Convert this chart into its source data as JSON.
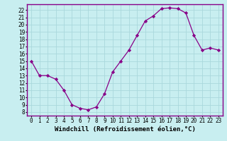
{
  "x": [
    0,
    1,
    2,
    3,
    4,
    5,
    6,
    7,
    8,
    9,
    10,
    11,
    12,
    13,
    14,
    15,
    16,
    17,
    18,
    19,
    20,
    21,
    22,
    23
  ],
  "y_actual": [
    15,
    13,
    13,
    12.5,
    11,
    9,
    8.5,
    8.3,
    8.7,
    10.5,
    13.5,
    15,
    16.5,
    18.5,
    20.5,
    21.2,
    22.2,
    22.3,
    22.2,
    21.6,
    18.5,
    16.5,
    16.8,
    16.5
  ],
  "line_color": "#880088",
  "marker": "D",
  "marker_size": 2.2,
  "background_color": "#c8eef0",
  "grid_color": "#aad8dc",
  "xlabel": "Windchill (Refroidissement éolien,°C)",
  "ylabel": "",
  "ylim": [
    7.5,
    22.8
  ],
  "yticks": [
    8,
    9,
    10,
    11,
    12,
    13,
    14,
    15,
    16,
    17,
    18,
    19,
    20,
    21,
    22
  ],
  "xlim": [
    -0.5,
    23.5
  ],
  "xticks": [
    0,
    1,
    2,
    3,
    4,
    5,
    6,
    7,
    8,
    9,
    10,
    11,
    12,
    13,
    14,
    15,
    16,
    17,
    18,
    19,
    20,
    21,
    22,
    23
  ],
  "axis_color": "#880088",
  "tick_labelsize": 5.5,
  "xlabel_fontsize": 6.5,
  "linewidth": 0.9
}
